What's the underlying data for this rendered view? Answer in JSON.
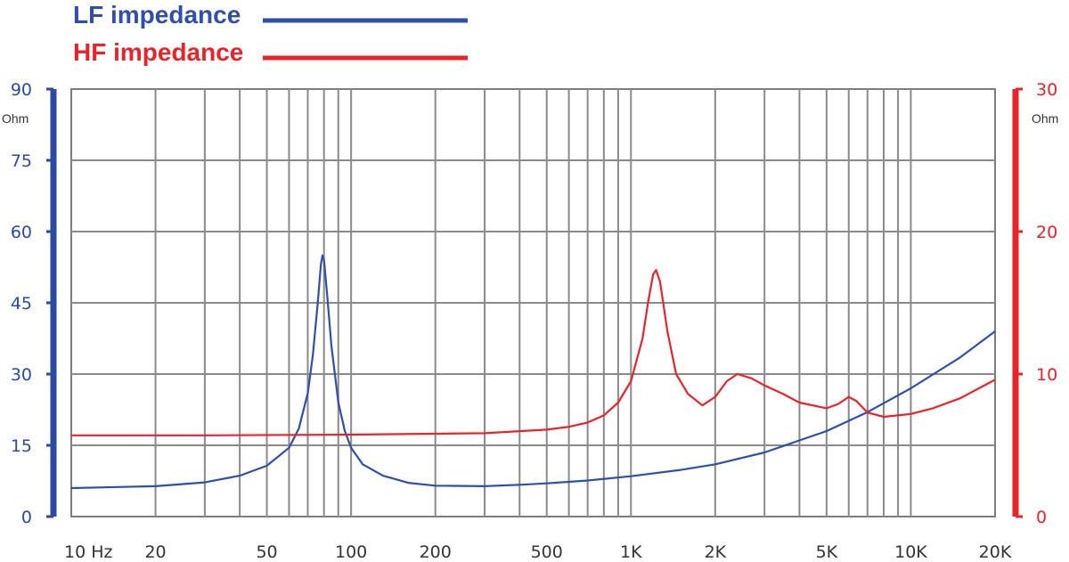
{
  "chart_data": {
    "type": "line",
    "x_scale": "log",
    "grid": true,
    "legend": "top-left",
    "xlim": [
      10,
      20000
    ],
    "x_ticks": [
      {
        "value": 10,
        "label": "10  Hz"
      },
      {
        "value": 20,
        "label": "20"
      },
      {
        "value": 50,
        "label": "50"
      },
      {
        "value": 100,
        "label": "100"
      },
      {
        "value": 200,
        "label": "200"
      },
      {
        "value": 500,
        "label": "500"
      },
      {
        "value": 1000,
        "label": "1K"
      },
      {
        "value": 2000,
        "label": "2K"
      },
      {
        "value": 5000,
        "label": "5K"
      },
      {
        "value": 10000,
        "label": "10K"
      },
      {
        "value": 20000,
        "label": "20K"
      }
    ],
    "y_left": {
      "unit": "Ohm",
      "ylim": [
        0,
        90
      ],
      "ticks": [
        0,
        15,
        30,
        45,
        60,
        75,
        90
      ],
      "color": "#2b4aa0"
    },
    "y_right": {
      "unit": "Ohm",
      "ylim": [
        0,
        30
      ],
      "ticks": [
        0,
        10,
        20,
        30
      ],
      "color": "#e8242b"
    },
    "series": [
      {
        "name": "LF impedance",
        "axis": "left",
        "color": "#2f4fa8",
        "points": [
          [
            10,
            6.0
          ],
          [
            20,
            6.4
          ],
          [
            30,
            7.2
          ],
          [
            40,
            8.6
          ],
          [
            50,
            10.7
          ],
          [
            60,
            14.5
          ],
          [
            65,
            18.5
          ],
          [
            70,
            26.0
          ],
          [
            73,
            34.0
          ],
          [
            76,
            45.0
          ],
          [
            78,
            53.0
          ],
          [
            79,
            55.0
          ],
          [
            80,
            54.0
          ],
          [
            82,
            47.0
          ],
          [
            85,
            36.0
          ],
          [
            90,
            24.0
          ],
          [
            95,
            18.0
          ],
          [
            100,
            14.5
          ],
          [
            110,
            11.0
          ],
          [
            130,
            8.6
          ],
          [
            160,
            7.1
          ],
          [
            200,
            6.5
          ],
          [
            300,
            6.4
          ],
          [
            400,
            6.7
          ],
          [
            500,
            7.0
          ],
          [
            700,
            7.6
          ],
          [
            1000,
            8.5
          ],
          [
            1500,
            9.8
          ],
          [
            2000,
            11.0
          ],
          [
            3000,
            13.5
          ],
          [
            5000,
            18.0
          ],
          [
            7000,
            22.0
          ],
          [
            10000,
            27.0
          ],
          [
            15000,
            33.5
          ],
          [
            20000,
            39.0
          ]
        ]
      },
      {
        "name": "HF impedance",
        "axis": "right",
        "color": "#e8242b",
        "points": [
          [
            10,
            5.7
          ],
          [
            30,
            5.7
          ],
          [
            100,
            5.75
          ],
          [
            300,
            5.85
          ],
          [
            500,
            6.1
          ],
          [
            600,
            6.3
          ],
          [
            700,
            6.6
          ],
          [
            800,
            7.1
          ],
          [
            900,
            8.0
          ],
          [
            1000,
            9.5
          ],
          [
            1100,
            12.5
          ],
          [
            1150,
            15.0
          ],
          [
            1200,
            17.0
          ],
          [
            1230,
            17.3
          ],
          [
            1270,
            16.5
          ],
          [
            1350,
            13.0
          ],
          [
            1450,
            10.0
          ],
          [
            1600,
            8.6
          ],
          [
            1800,
            7.8
          ],
          [
            2000,
            8.4
          ],
          [
            2200,
            9.5
          ],
          [
            2400,
            10.0
          ],
          [
            2700,
            9.7
          ],
          [
            3000,
            9.2
          ],
          [
            3500,
            8.6
          ],
          [
            4000,
            8.0
          ],
          [
            5000,
            7.6
          ],
          [
            5500,
            7.9
          ],
          [
            6000,
            8.4
          ],
          [
            6400,
            8.1
          ],
          [
            7000,
            7.3
          ],
          [
            8000,
            7.0
          ],
          [
            10000,
            7.2
          ],
          [
            12000,
            7.6
          ],
          [
            15000,
            8.3
          ],
          [
            20000,
            9.6
          ]
        ]
      }
    ]
  }
}
